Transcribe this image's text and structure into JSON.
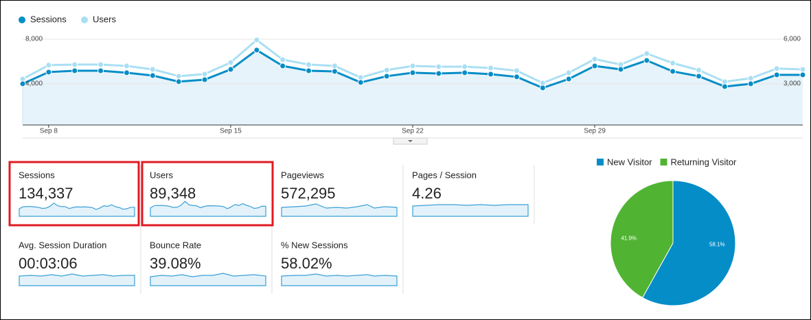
{
  "chart_data": [
    {
      "type": "line",
      "categories": [
        null,
        "Sep 8",
        null,
        null,
        null,
        null,
        null,
        null,
        "Sep 15",
        null,
        null,
        null,
        null,
        null,
        null,
        "Sep 22",
        null,
        null,
        null,
        null,
        null,
        null,
        "Sep 29",
        null,
        null,
        null,
        null,
        null,
        null,
        null,
        null
      ],
      "series": [
        {
          "name": "Sessions",
          "color": "#058dc7",
          "values": [
            4000,
            5050,
            5170,
            5170,
            4990,
            4740,
            4190,
            4370,
            5290,
            7020,
            5600,
            5170,
            5110,
            4120,
            4680,
            4990,
            4920,
            4990,
            4860,
            4620,
            3630,
            4430,
            5600,
            5290,
            6090,
            5110,
            4680,
            3750,
            4000,
            4800,
            4800
          ]
        },
        {
          "name": "Users",
          "color": "#aadff3",
          "axis": "y2",
          "values": [
            3320,
            4250,
            4290,
            4290,
            4200,
            3970,
            3510,
            3650,
            4430,
            5950,
            4620,
            4290,
            4200,
            3420,
            3920,
            4200,
            4150,
            4150,
            4060,
            3880,
            3050,
            3740,
            4660,
            4290,
            5030,
            4390,
            3920,
            3140,
            3370,
            4020,
            3970
          ]
        }
      ],
      "ylim": [
        0,
        8000
      ],
      "yticks": [
        {
          "value": 4000,
          "label": "4,000"
        },
        {
          "value": 8000,
          "label": "8,000"
        }
      ],
      "y2lim": [
        0,
        6000
      ],
      "y2ticks": [
        {
          "value": 3000,
          "label": "3,000"
        },
        {
          "value": 6000,
          "label": "6,000"
        }
      ],
      "grid": true
    },
    {
      "type": "pie",
      "categories": [
        "New Visitor",
        "Returning Visitor"
      ],
      "values": [
        58.1,
        41.9
      ],
      "value_labels": [
        "58.1%",
        "41.9%"
      ],
      "colors": [
        "#058dc7",
        "#50b432"
      ]
    }
  ],
  "metrics": [
    {
      "name": "Sessions",
      "value": "134,337"
    },
    {
      "name": "Users",
      "value": "89,348"
    },
    {
      "name": "Pageviews",
      "value": "572,295"
    },
    {
      "name": "Pages / Session",
      "value": "4.26"
    },
    {
      "name": "Avg. Session Duration",
      "value": "00:03:06"
    },
    {
      "name": "Bounce Rate",
      "value": "39.08%"
    },
    {
      "name": "% New Sessions",
      "value": "58.02%"
    }
  ]
}
